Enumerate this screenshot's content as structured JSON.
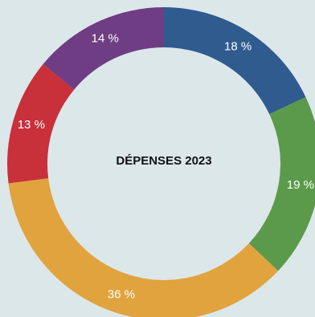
{
  "chart_data": {
    "type": "pie",
    "variant": "donut",
    "title": "DÉPENSES 2023",
    "slices": [
      {
        "value": 18,
        "label": "18 %",
        "color": "#2f5b8f"
      },
      {
        "value": 19,
        "label": "19 %",
        "color": "#5b9a4a"
      },
      {
        "value": 36,
        "label": "36 %",
        "color": "#e1a33e"
      },
      {
        "value": 13,
        "label": "13 %",
        "color": "#c8303a"
      },
      {
        "value": 14,
        "label": "14 %",
        "color": "#6e3d83"
      }
    ],
    "start_angle": "12 o'clock",
    "direction": "clockwise",
    "legend": "none"
  }
}
